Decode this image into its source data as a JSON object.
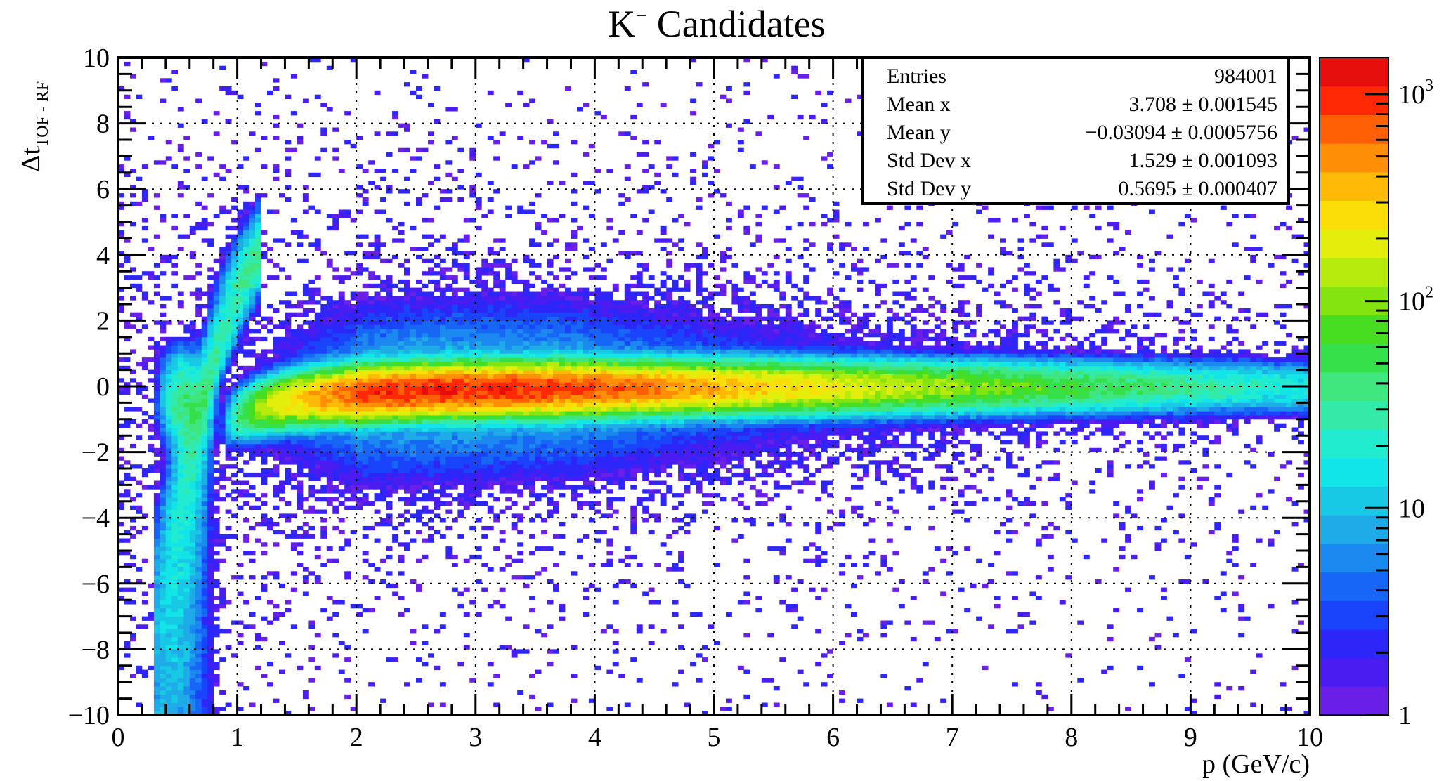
{
  "chart_data": {
    "type": "heatmap",
    "title_main": "K",
    "title_sup": "−",
    "title_rest": " Candidates",
    "xlabel": "p (GeV/c)",
    "ylabel_main": "Δt",
    "ylabel_sub": "TOF - RF",
    "xlim": [
      0,
      10
    ],
    "ylim": [
      -10,
      10
    ],
    "x_ticks": [
      "0",
      "1",
      "2",
      "3",
      "4",
      "5",
      "6",
      "7",
      "8",
      "9",
      "10"
    ],
    "y_ticks": [
      "−10",
      "−8",
      "−6",
      "−4",
      "−2",
      "0",
      "2",
      "4",
      "6",
      "8",
      "10"
    ],
    "grid": true,
    "z_scale": "log",
    "zlim": [
      1,
      1500
    ],
    "colorbar_labels": [
      {
        "base": "1",
        "exp": ""
      },
      {
        "base": "10",
        "exp": ""
      },
      {
        "base": "10",
        "exp": "2"
      },
      {
        "base": "10",
        "exp": "3"
      }
    ],
    "bands": [
      {
        "name": "main band",
        "x_range": [
          0.9,
          10
        ],
        "center_y": "≈0",
        "peak_x": 2.8,
        "peak_count": 1000
      },
      {
        "name": "low-momentum curve",
        "x_range": [
          0.3,
          1.0
        ],
        "y_range": [
          -10,
          10
        ]
      }
    ],
    "stats": {
      "rows": [
        {
          "label": "Entries",
          "value": "984001"
        },
        {
          "label": "Mean x",
          "value": "3.708 ± 0.001545"
        },
        {
          "label": "Mean y",
          "value": "−0.03094 ± 0.0005756"
        },
        {
          "label": "Std Dev x",
          "value": "1.529 ± 0.001093"
        },
        {
          "label": "Std Dev y",
          "value": "0.5695 ± 0.000407"
        }
      ]
    },
    "palette": [
      "#6a1fe8",
      "#4b1cf2",
      "#2d26f8",
      "#1a44fb",
      "#1766f6",
      "#1b89f0",
      "#1faae8",
      "#17c9e4",
      "#12e5e8",
      "#22ecd0",
      "#33eaa8",
      "#3fe67d",
      "#35e04a",
      "#47de22",
      "#83e410",
      "#b7ea0d",
      "#e3ee0c",
      "#f9de08",
      "#ffb907",
      "#ff8f06",
      "#ff5f05",
      "#ff2a05",
      "#e60d0d"
    ]
  }
}
